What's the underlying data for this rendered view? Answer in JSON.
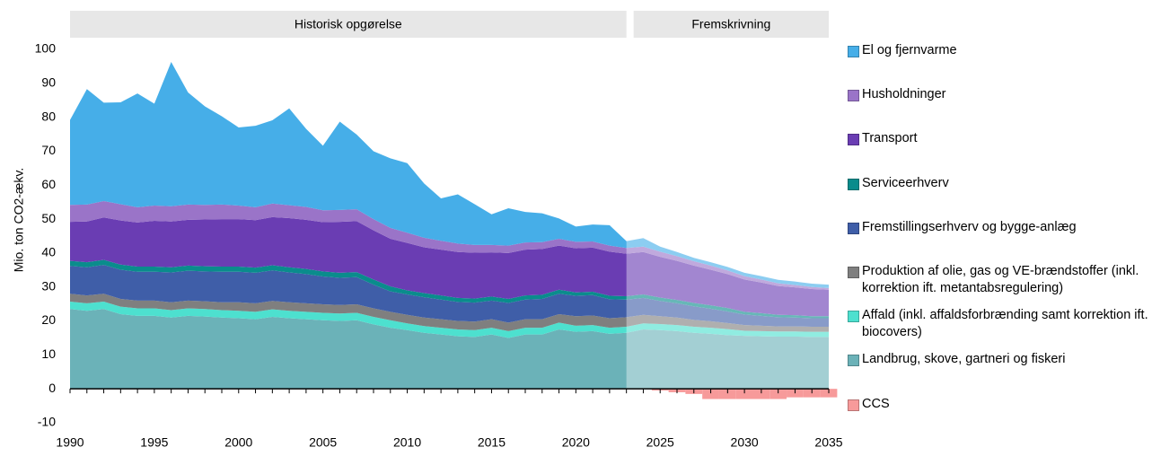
{
  "chart_data": {
    "type": "stacked-area",
    "y_label": "Mio. ton CO2-ækv.",
    "periods": [
      {
        "label": "Historisk opgørelse",
        "start": 1990,
        "end": 2023
      },
      {
        "label": "Fremskrivning",
        "start": 2023,
        "end": 2035
      }
    ],
    "x": [
      1990,
      1991,
      1992,
      1993,
      1994,
      1995,
      1996,
      1997,
      1998,
      1999,
      2000,
      2001,
      2002,
      2003,
      2004,
      2005,
      2006,
      2007,
      2008,
      2009,
      2010,
      2011,
      2012,
      2013,
      2014,
      2015,
      2016,
      2017,
      2018,
      2019,
      2020,
      2021,
      2022,
      2023,
      2024,
      2025,
      2026,
      2027,
      2028,
      2029,
      2030,
      2031,
      2032,
      2033,
      2034,
      2035
    ],
    "xlim": [
      1990,
      2035
    ],
    "xticks": [
      1990,
      1995,
      2000,
      2005,
      2010,
      2015,
      2020,
      2025,
      2030,
      2035
    ],
    "ylim": [
      -10,
      100
    ],
    "yticks": [
      -10,
      0,
      10,
      20,
      30,
      40,
      50,
      60,
      70,
      80,
      90,
      100
    ],
    "series": [
      {
        "name": "Landbrug, skove, gartneri og fiskeri",
        "color": "#6bb2b8",
        "values": [
          23.5,
          23,
          23.5,
          22,
          21.5,
          21.5,
          21,
          21.5,
          21.3,
          21,
          20.8,
          20.5,
          21.2,
          20.8,
          20.5,
          20.2,
          20,
          20.2,
          19,
          18,
          17.3,
          16.5,
          16,
          15.5,
          15.3,
          16,
          15,
          16,
          16,
          17.5,
          16.8,
          17,
          16.2,
          16.5,
          17.5,
          17.3,
          17,
          16.5,
          16.2,
          15.8,
          15.6,
          15.5,
          15.4,
          15.4,
          15.3,
          15.3
        ]
      },
      {
        "name": "Affald (inkl. affaldsforbrænding samt korrektion ift. biocovers)",
        "color": "#4de0cf",
        "values": [
          2.2,
          2.2,
          2.2,
          2.2,
          2.2,
          2.2,
          2.2,
          2.2,
          2.2,
          2.2,
          2.2,
          2.2,
          2.2,
          2.2,
          2.2,
          2.2,
          2.2,
          2.2,
          2.2,
          2.2,
          2,
          2,
          2,
          2,
          2,
          2,
          2,
          2,
          2,
          2,
          1.8,
          1.8,
          1.8,
          1.8,
          1.8,
          1.8,
          1.8,
          1.8,
          1.8,
          1.8,
          1.5,
          1.5,
          1.5,
          1.5,
          1.5,
          1.5
        ]
      },
      {
        "name": "Produktion af olie, gas og VE-brændstoffer (inkl. korrektion ift. metantabsregulering)",
        "color": "#7f7f7f",
        "values": [
          2.3,
          2.3,
          2.3,
          2.3,
          2.3,
          2.3,
          2.3,
          2.3,
          2.3,
          2.3,
          2.5,
          2.5,
          2.5,
          2.5,
          2.5,
          2.5,
          2.5,
          2.5,
          2.5,
          2.5,
          2.5,
          2.5,
          2.5,
          2.5,
          2.5,
          2.5,
          2.5,
          2.5,
          2.5,
          2.5,
          2.8,
          2.8,
          2.8,
          2.8,
          2.5,
          2.3,
          2.2,
          2,
          1.9,
          1.8,
          1.7,
          1.6,
          1.5,
          1.5,
          1.5,
          1.5
        ]
      },
      {
        "name": "Fremstillingserhverv og bygge-anlæg",
        "color": "#3f5ea8",
        "values": [
          8.2,
          8.3,
          8.5,
          8.6,
          8.5,
          8.5,
          8.8,
          8.8,
          8.8,
          9,
          9,
          9,
          9,
          8.8,
          8.6,
          8.2,
          8,
          8,
          7,
          6,
          6,
          6,
          5.8,
          5.6,
          5.6,
          5.5,
          5.8,
          5.8,
          6,
          6,
          6,
          6,
          5.6,
          5.2,
          5,
          4.5,
          4.2,
          4,
          3.7,
          3.4,
          3.1,
          2.9,
          2.7,
          2.6,
          2.5,
          2.5
        ]
      },
      {
        "name": "Serviceerhverv",
        "color": "#0a8c8c",
        "values": [
          1.5,
          1.5,
          1.5,
          1.5,
          1.5,
          1.5,
          1.5,
          1.5,
          1.5,
          1.5,
          1.5,
          1.5,
          1.5,
          1.5,
          1.5,
          1.5,
          1.5,
          1.5,
          1.5,
          1.5,
          1.2,
          1.2,
          1.2,
          1.2,
          1.2,
          1.2,
          1.2,
          1.2,
          1.2,
          1.2,
          1,
          1,
          1,
          1,
          1,
          1,
          1,
          1,
          1,
          1,
          0.8,
          0.8,
          0.7,
          0.7,
          0.6,
          0.6
        ]
      },
      {
        "name": "Transport",
        "color": "#6a3db3",
        "values": [
          11.5,
          12,
          12.5,
          13,
          13,
          13.5,
          13.5,
          13.5,
          13.8,
          14,
          14,
          14,
          14.2,
          14.5,
          14.5,
          14.5,
          15,
          15,
          14.5,
          14,
          14,
          13.5,
          13.5,
          13.5,
          13.5,
          13,
          13.5,
          13.5,
          13.5,
          13,
          13,
          13,
          13,
          12.5,
          12.5,
          12,
          11.5,
          11,
          10.5,
          10,
          9.5,
          9,
          8.5,
          8.2,
          8,
          7.8
        ]
      },
      {
        "name": "Husholdninger",
        "color": "#9a74c8",
        "values": [
          5,
          5,
          4.8,
          4.8,
          4.5,
          4.5,
          4.5,
          4.5,
          4.3,
          4.3,
          4,
          3.8,
          4,
          3.8,
          3.8,
          3.5,
          3.5,
          3.5,
          3.3,
          3.2,
          3,
          2.8,
          2.6,
          2.5,
          2.3,
          2.2,
          2.2,
          2.1,
          2,
          2,
          1.9,
          1.8,
          1.8,
          1.7,
          1.6,
          1.5,
          1.4,
          1.3,
          1.2,
          1.1,
          1,
          0.9,
          0.8,
          0.7,
          0.6,
          0.5
        ]
      },
      {
        "name": "El og fjernvarme",
        "color": "#46aee8",
        "values": [
          25,
          34,
          29,
          30,
          33.5,
          30,
          42.5,
          33,
          29,
          26,
          23,
          24,
          24.5,
          28.5,
          23,
          19,
          26,
          22,
          20,
          20.5,
          20.5,
          16,
          12.5,
          14.5,
          12,
          9,
          11,
          9,
          8.5,
          6,
          4.5,
          5,
          6,
          2,
          2.5,
          1.5,
          1.2,
          1,
          1,
          1,
          1,
          1,
          1,
          1,
          1,
          1
        ]
      },
      {
        "name": "CCS",
        "color": "#f79a9a",
        "values": [
          0,
          0,
          0,
          0,
          0,
          0,
          0,
          0,
          0,
          0,
          0,
          0,
          0,
          0,
          0,
          0,
          0,
          0,
          0,
          0,
          0,
          0,
          0,
          0,
          0,
          0,
          0,
          0,
          0,
          0,
          0,
          0,
          0,
          0,
          0,
          -0.5,
          -1,
          -1.5,
          -3,
          -3,
          -3,
          -3,
          -3,
          -2.5,
          -2.5,
          -2.5
        ]
      }
    ]
  }
}
